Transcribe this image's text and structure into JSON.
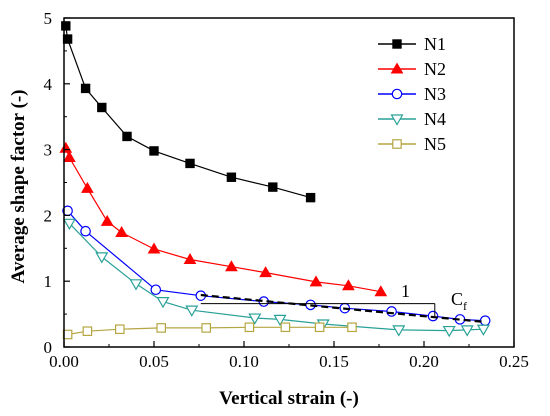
{
  "chart_data": {
    "type": "line",
    "title": "",
    "xlabel": "Vertical strain (-)",
    "ylabel": "Average shape factor (-)",
    "xlim": [
      0,
      0.25
    ],
    "ylim": [
      0,
      5
    ],
    "xticks": [
      "0.00",
      "0.05",
      "0.10",
      "0.15",
      "0.20",
      "0.25"
    ],
    "yticks": [
      "0",
      "1",
      "2",
      "3",
      "4",
      "5"
    ],
    "grid": false,
    "legend_position": "top-right",
    "series": [
      {
        "name": "N1",
        "color": "#000000",
        "marker": "square-filled",
        "points": [
          [
            0.001,
            4.88
          ],
          [
            0.002,
            4.68
          ],
          [
            0.012,
            3.93
          ],
          [
            0.021,
            3.64
          ],
          [
            0.035,
            3.2
          ],
          [
            0.05,
            2.98
          ],
          [
            0.07,
            2.79
          ],
          [
            0.093,
            2.58
          ],
          [
            0.116,
            2.43
          ],
          [
            0.137,
            2.27
          ]
        ]
      },
      {
        "name": "N2",
        "color": "#ff0000",
        "marker": "triangle-up-filled",
        "points": [
          [
            0.001,
            3.02
          ],
          [
            0.003,
            2.88
          ],
          [
            0.013,
            2.41
          ],
          [
            0.024,
            1.91
          ],
          [
            0.032,
            1.74
          ],
          [
            0.05,
            1.49
          ],
          [
            0.07,
            1.33
          ],
          [
            0.093,
            1.22
          ],
          [
            0.112,
            1.13
          ],
          [
            0.14,
            0.99
          ],
          [
            0.158,
            0.93
          ],
          [
            0.176,
            0.84
          ]
        ]
      },
      {
        "name": "N3",
        "color": "#0000ff",
        "marker": "circle-open",
        "points": [
          [
            0.002,
            2.07
          ],
          [
            0.012,
            1.76
          ],
          [
            0.051,
            0.87
          ],
          [
            0.076,
            0.78
          ],
          [
            0.111,
            0.69
          ],
          [
            0.137,
            0.64
          ],
          [
            0.156,
            0.59
          ],
          [
            0.182,
            0.54
          ],
          [
            0.205,
            0.47
          ],
          [
            0.22,
            0.42
          ],
          [
            0.234,
            0.4
          ]
        ]
      },
      {
        "name": "N4",
        "color": "#2aa198",
        "marker": "triangle-down-open",
        "points": [
          [
            0.003,
            1.88
          ],
          [
            0.021,
            1.37
          ],
          [
            0.04,
            0.96
          ],
          [
            0.055,
            0.69
          ],
          [
            0.071,
            0.56
          ],
          [
            0.106,
            0.44
          ],
          [
            0.12,
            0.42
          ],
          [
            0.144,
            0.35
          ],
          [
            0.186,
            0.26
          ],
          [
            0.214,
            0.25
          ],
          [
            0.224,
            0.26
          ],
          [
            0.233,
            0.27
          ]
        ]
      },
      {
        "name": "N5",
        "color": "#b5a642",
        "marker": "square-open",
        "points": [
          [
            0.002,
            0.19
          ],
          [
            0.013,
            0.24
          ],
          [
            0.031,
            0.27
          ],
          [
            0.054,
            0.29
          ],
          [
            0.079,
            0.29
          ],
          [
            0.103,
            0.3
          ],
          [
            0.123,
            0.3
          ],
          [
            0.142,
            0.3
          ],
          [
            0.16,
            0.3
          ]
        ]
      }
    ],
    "annotations": {
      "slope_label": "1",
      "cf_label": "C",
      "cf_subscript": "f",
      "dashed_fit": [
        [
          0.076,
          0.79
        ],
        [
          0.234,
          0.38
        ]
      ]
    }
  }
}
